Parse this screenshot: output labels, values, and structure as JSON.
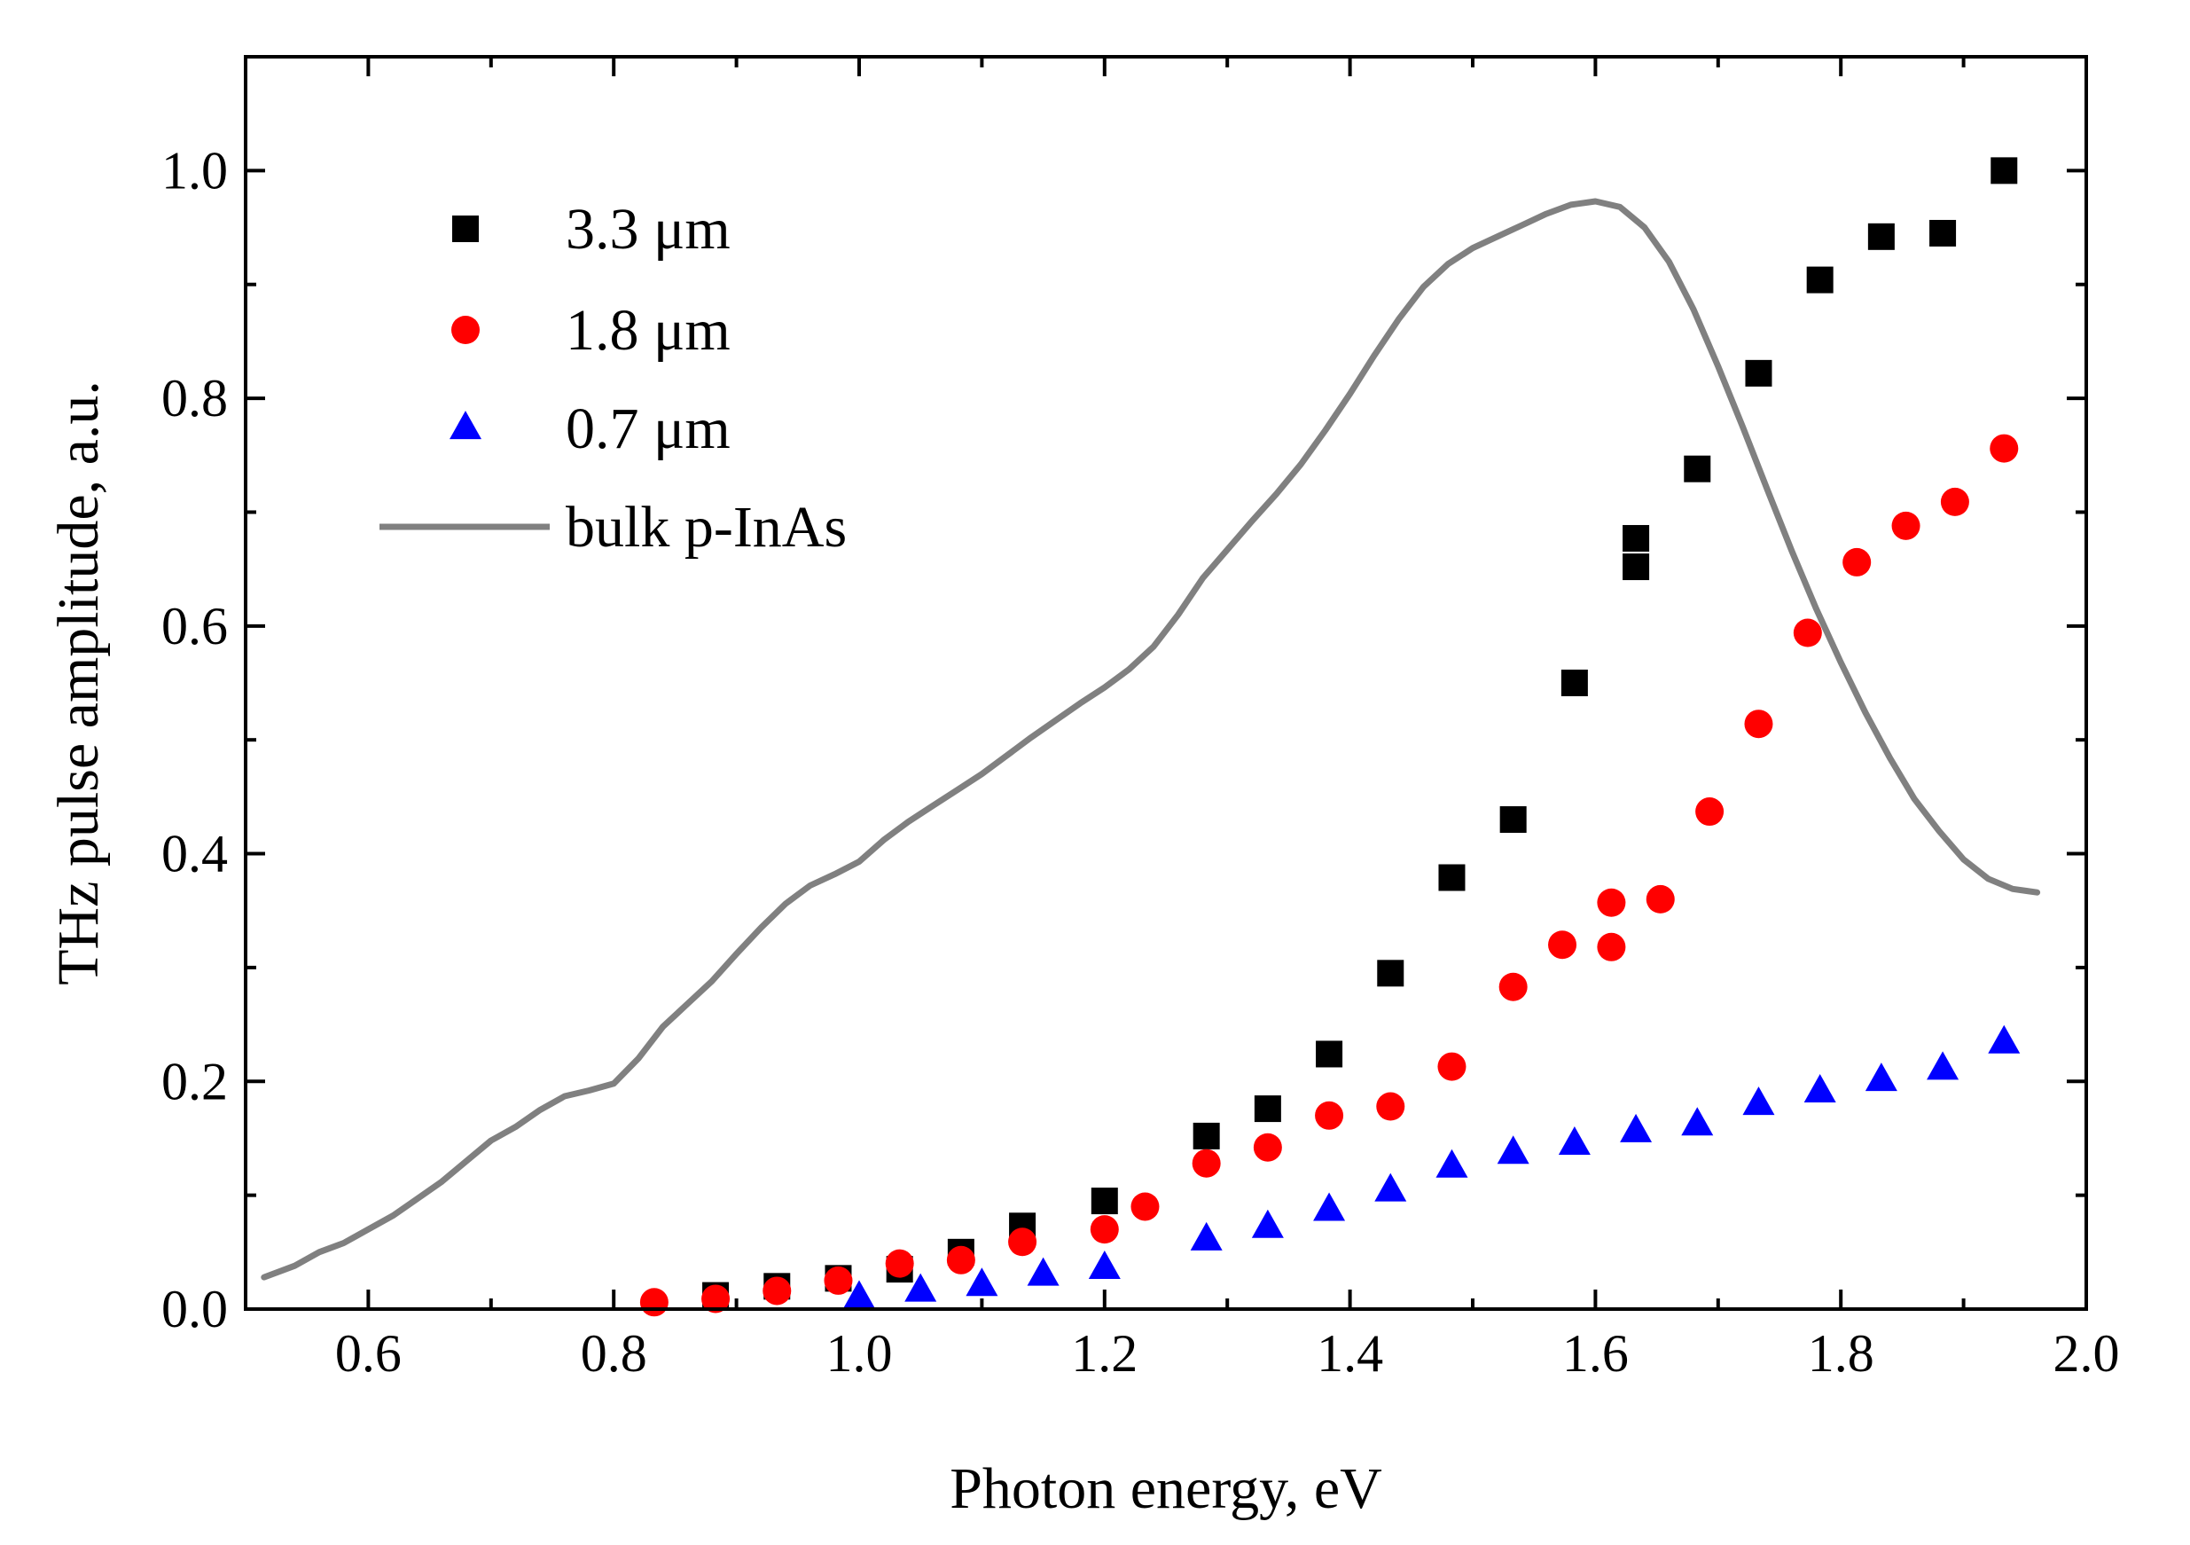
{
  "chart_data": {
    "type": "scatter",
    "title": "",
    "xlabel": "Photon energy, eV",
    "ylabel": "THz pulse amplitude, a.u.",
    "xlim": [
      0.5,
      2.0
    ],
    "ylim": [
      0.0,
      1.1
    ],
    "x_ticks": [
      "0.6",
      "0.8",
      "1.0",
      "1.2",
      "1.4",
      "1.6",
      "1.8",
      "2.0"
    ],
    "x_tick_values": [
      0.6,
      0.8,
      1.0,
      1.2,
      1.4,
      1.6,
      1.8,
      2.0
    ],
    "y_ticks": [
      "0.0",
      "0.2",
      "0.4",
      "0.6",
      "0.8",
      "1.0"
    ],
    "y_tick_values": [
      0.0,
      0.2,
      0.4,
      0.6,
      0.8,
      1.0
    ],
    "legend_position": "top-left",
    "series": [
      {
        "name": "3.3 μm",
        "marker": "square",
        "color": "#000000",
        "points": [
          [
            0.883,
            0.012
          ],
          [
            0.933,
            0.02
          ],
          [
            0.983,
            0.027
          ],
          [
            1.033,
            0.035
          ],
          [
            1.083,
            0.05
          ],
          [
            1.133,
            0.073
          ],
          [
            1.2,
            0.095
          ],
          [
            1.283,
            0.152
          ],
          [
            1.333,
            0.176
          ],
          [
            1.383,
            0.224
          ],
          [
            1.433,
            0.295
          ],
          [
            1.483,
            0.379
          ],
          [
            1.533,
            0.43
          ],
          [
            1.583,
            0.55
          ],
          [
            1.633,
            0.652
          ],
          [
            1.633,
            0.677
          ],
          [
            1.683,
            0.738
          ],
          [
            1.733,
            0.822
          ],
          [
            1.783,
            0.904
          ],
          [
            1.833,
            0.942
          ],
          [
            1.883,
            0.945
          ],
          [
            1.933,
            1.0
          ]
        ]
      },
      {
        "name": "1.8 μm",
        "marker": "circle",
        "color": "#ff0000",
        "points": [
          [
            0.833,
            0.006
          ],
          [
            0.883,
            0.009
          ],
          [
            0.933,
            0.016
          ],
          [
            0.983,
            0.025
          ],
          [
            1.033,
            0.04
          ],
          [
            1.083,
            0.043
          ],
          [
            1.133,
            0.059
          ],
          [
            1.2,
            0.07
          ],
          [
            1.233,
            0.09
          ],
          [
            1.283,
            0.128
          ],
          [
            1.333,
            0.142
          ],
          [
            1.383,
            0.17
          ],
          [
            1.433,
            0.178
          ],
          [
            1.483,
            0.213
          ],
          [
            1.533,
            0.283
          ],
          [
            1.573,
            0.32
          ],
          [
            1.613,
            0.318
          ],
          [
            1.613,
            0.357
          ],
          [
            1.653,
            0.36
          ],
          [
            1.693,
            0.437
          ],
          [
            1.733,
            0.514
          ],
          [
            1.773,
            0.594
          ],
          [
            1.813,
            0.656
          ],
          [
            1.853,
            0.688
          ],
          [
            1.893,
            0.709
          ],
          [
            1.933,
            0.756
          ]
        ]
      },
      {
        "name": "0.7 μm",
        "marker": "triangle",
        "color": "#0000ff",
        "points": [
          [
            1.0,
            0.01
          ],
          [
            1.05,
            0.016
          ],
          [
            1.1,
            0.021
          ],
          [
            1.15,
            0.03
          ],
          [
            1.2,
            0.036
          ],
          [
            1.283,
            0.061
          ],
          [
            1.333,
            0.072
          ],
          [
            1.383,
            0.087
          ],
          [
            1.433,
            0.104
          ],
          [
            1.483,
            0.125
          ],
          [
            1.533,
            0.137
          ],
          [
            1.583,
            0.145
          ],
          [
            1.633,
            0.156
          ],
          [
            1.683,
            0.162
          ],
          [
            1.733,
            0.18
          ],
          [
            1.783,
            0.191
          ],
          [
            1.833,
            0.201
          ],
          [
            1.883,
            0.211
          ],
          [
            1.933,
            0.234
          ]
        ]
      },
      {
        "name": "bulk p-InAs",
        "marker": "line",
        "color": "#808080",
        "points": [
          [
            0.515,
            0.028
          ],
          [
            0.54,
            0.038
          ],
          [
            0.56,
            0.05
          ],
          [
            0.58,
            0.058
          ],
          [
            0.6,
            0.07
          ],
          [
            0.62,
            0.082
          ],
          [
            0.64,
            0.097
          ],
          [
            0.66,
            0.112
          ],
          [
            0.68,
            0.13
          ],
          [
            0.7,
            0.148
          ],
          [
            0.72,
            0.16
          ],
          [
            0.74,
            0.175
          ],
          [
            0.76,
            0.187
          ],
          [
            0.78,
            0.192
          ],
          [
            0.8,
            0.198
          ],
          [
            0.82,
            0.22
          ],
          [
            0.84,
            0.248
          ],
          [
            0.86,
            0.268
          ],
          [
            0.88,
            0.288
          ],
          [
            0.9,
            0.312
          ],
          [
            0.92,
            0.335
          ],
          [
            0.94,
            0.356
          ],
          [
            0.96,
            0.372
          ],
          [
            0.98,
            0.382
          ],
          [
            1.0,
            0.393
          ],
          [
            1.02,
            0.412
          ],
          [
            1.04,
            0.428
          ],
          [
            1.06,
            0.442
          ],
          [
            1.08,
            0.456
          ],
          [
            1.1,
            0.47
          ],
          [
            1.12,
            0.486
          ],
          [
            1.14,
            0.502
          ],
          [
            1.16,
            0.517
          ],
          [
            1.18,
            0.532
          ],
          [
            1.2,
            0.546
          ],
          [
            1.22,
            0.562
          ],
          [
            1.24,
            0.582
          ],
          [
            1.26,
            0.61
          ],
          [
            1.28,
            0.642
          ],
          [
            1.3,
            0.667
          ],
          [
            1.32,
            0.692
          ],
          [
            1.34,
            0.716
          ],
          [
            1.36,
            0.742
          ],
          [
            1.38,
            0.772
          ],
          [
            1.4,
            0.804
          ],
          [
            1.42,
            0.838
          ],
          [
            1.44,
            0.87
          ],
          [
            1.46,
            0.898
          ],
          [
            1.48,
            0.918
          ],
          [
            1.5,
            0.932
          ],
          [
            1.52,
            0.942
          ],
          [
            1.54,
            0.952
          ],
          [
            1.56,
            0.962
          ],
          [
            1.58,
            0.97
          ],
          [
            1.6,
            0.973
          ],
          [
            1.62,
            0.968
          ],
          [
            1.64,
            0.95
          ],
          [
            1.66,
            0.92
          ],
          [
            1.68,
            0.878
          ],
          [
            1.7,
            0.828
          ],
          [
            1.72,
            0.775
          ],
          [
            1.74,
            0.72
          ],
          [
            1.76,
            0.666
          ],
          [
            1.78,
            0.615
          ],
          [
            1.8,
            0.568
          ],
          [
            1.82,
            0.524
          ],
          [
            1.84,
            0.484
          ],
          [
            1.86,
            0.448
          ],
          [
            1.88,
            0.42
          ],
          [
            1.9,
            0.395
          ],
          [
            1.92,
            0.378
          ],
          [
            1.94,
            0.369
          ],
          [
            1.96,
            0.366
          ]
        ]
      }
    ]
  }
}
